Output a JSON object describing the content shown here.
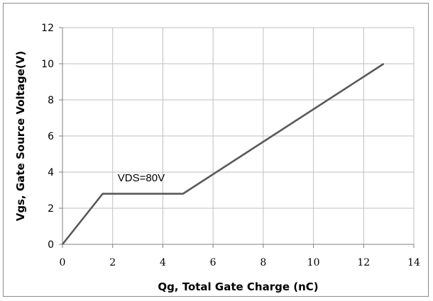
{
  "chart_data": {
    "type": "line",
    "title": "",
    "xlabel": "Qg, Total Gate Charge (nC)",
    "ylabel": "Vgs,  Gate Source Voltage(V)",
    "xlim": [
      0,
      14
    ],
    "ylim": [
      0,
      12
    ],
    "xticks": [
      "0",
      "2",
      "4",
      "6",
      "8",
      "10",
      "12",
      "14"
    ],
    "yticks": [
      "0",
      "2",
      "4",
      "6",
      "8",
      "10",
      "12"
    ],
    "grid": true,
    "legend": "none",
    "series": [
      {
        "x": [
          0,
          1.6,
          4.8,
          12.8
        ],
        "y": [
          0,
          2.8,
          2.8,
          10
        ],
        "color": "#595959"
      }
    ],
    "annotations": [
      {
        "text": "VDS=80V",
        "x": 2.2,
        "y": 3.5
      }
    ]
  }
}
